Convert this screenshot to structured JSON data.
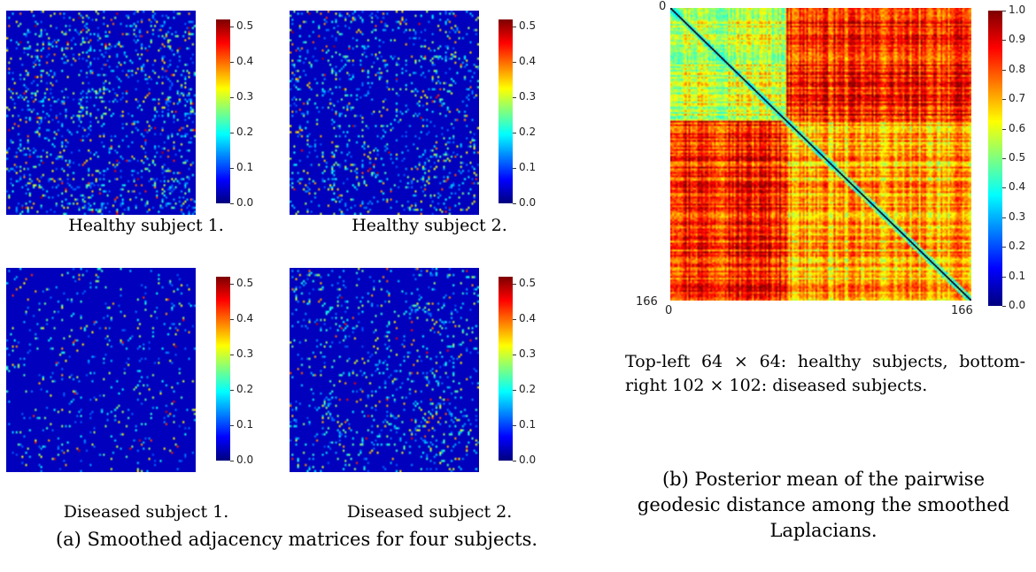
{
  "chart_data": [
    {
      "type": "heatmap",
      "title": "Healthy subject 1.",
      "colorbar_ticks": [
        "0.0",
        "0.1",
        "0.2",
        "0.3",
        "0.4",
        "0.5"
      ],
      "zlim": [
        0,
        0.52
      ],
      "colormap": "jet",
      "seed": 11,
      "density": 0.17
    },
    {
      "type": "heatmap",
      "title": "Healthy subject 2.",
      "colorbar_ticks": [
        "0.0",
        "0.1",
        "0.2",
        "0.3",
        "0.4",
        "0.5"
      ],
      "zlim": [
        0,
        0.52
      ],
      "colormap": "jet",
      "seed": 23,
      "density": 0.13
    },
    {
      "type": "heatmap",
      "title": "Diseased subject 1.",
      "colorbar_ticks": [
        "0.0",
        "0.1",
        "0.2",
        "0.3",
        "0.4",
        "0.5"
      ],
      "zlim": [
        0,
        0.52
      ],
      "colormap": "jet",
      "seed": 37,
      "density": 0.07
    },
    {
      "type": "heatmap",
      "title": "Diseased subject 2.",
      "colorbar_ticks": [
        "0.0",
        "0.1",
        "0.2",
        "0.3",
        "0.4",
        "0.5"
      ],
      "zlim": [
        0,
        0.52
      ],
      "colormap": "jet",
      "seed": 53,
      "density": 0.12
    },
    {
      "type": "heatmap",
      "axis_labels": {
        "top_left": "0",
        "bottom_left": "166",
        "bottom_x_start": "0",
        "bottom_x_end": "166"
      },
      "n": 166,
      "healthy_block": 64,
      "colorbar_ticks": [
        "0.0",
        "0.1",
        "0.2",
        "0.3",
        "0.4",
        "0.5",
        "0.6",
        "0.7",
        "0.8",
        "0.9",
        "1.0"
      ],
      "zlim": [
        0,
        1
      ],
      "colormap": "jet",
      "seed": 97
    }
  ],
  "captions": {
    "a": "(a) Smoothed adjacency matrices for four subjects.",
    "b": "(b) Posterior mean of the pairwise geodesic distance among the smoothed Laplacians.",
    "description": "Top-left 64 × 64: healthy subjects, bottom-right 102 × 102: diseased subjects."
  }
}
